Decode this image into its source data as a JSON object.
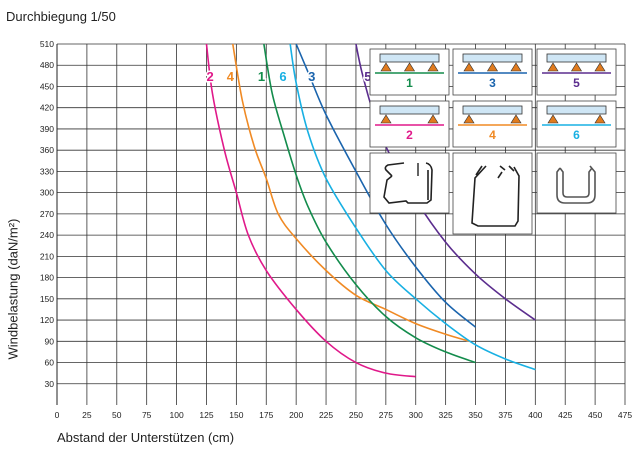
{
  "chart_data": {
    "type": "line",
    "title": "Durchbiegung 1/50",
    "xlabel": "Abstand der Unterstützen  (cm)",
    "ylabel": "Windbelastung  (daN/m²)",
    "xlim": [
      0,
      475
    ],
    "ylim": [
      0,
      510
    ],
    "xticks": [
      0,
      25,
      50,
      75,
      100,
      125,
      150,
      175,
      200,
      225,
      250,
      275,
      300,
      325,
      350,
      375,
      400,
      425,
      450,
      475
    ],
    "yticks": [
      30,
      60,
      90,
      120,
      150,
      180,
      210,
      240,
      270,
      300,
      330,
      360,
      390,
      420,
      450,
      480,
      510
    ],
    "grid": true,
    "series": [
      {
        "name": "2",
        "color": "#e0198a",
        "x": [
          125,
          130,
          140,
          150,
          160,
          175,
          200,
          225,
          250,
          275,
          300
        ],
        "y": [
          510,
          440,
          360,
          300,
          240,
          190,
          135,
          90,
          60,
          45,
          40
        ]
      },
      {
        "name": "4",
        "color": "#f08a24",
        "x": [
          147,
          155,
          165,
          175,
          185,
          200,
          225,
          250,
          275,
          300,
          325,
          345
        ],
        "y": [
          510,
          430,
          365,
          320,
          270,
          235,
          190,
          155,
          135,
          115,
          100,
          90
        ]
      },
      {
        "name": "1",
        "color": "#138c4c",
        "x": [
          173,
          180,
          190,
          200,
          210,
          225,
          250,
          275,
          300,
          325,
          350
        ],
        "y": [
          510,
          440,
          380,
          325,
          280,
          230,
          170,
          125,
          95,
          75,
          60
        ]
      },
      {
        "name": "6",
        "color": "#18b0e3",
        "x": [
          195,
          200,
          210,
          225,
          250,
          275,
          300,
          325,
          350,
          375,
          400
        ],
        "y": [
          510,
          455,
          385,
          320,
          250,
          190,
          150,
          115,
          85,
          65,
          50
        ]
      },
      {
        "name": "3",
        "color": "#1a64ad",
        "x": [
          200,
          210,
          225,
          250,
          275,
          300,
          325,
          350
        ],
        "y": [
          510,
          470,
          410,
          330,
          255,
          195,
          145,
          110
        ]
      },
      {
        "name": "5",
        "color": "#5b2d8e",
        "x": [
          250,
          255,
          265,
          275,
          300,
          325,
          350,
          375,
          400
        ],
        "y": [
          510,
          470,
          410,
          365,
          290,
          230,
          185,
          150,
          120
        ]
      }
    ],
    "curve_labels": [
      {
        "text": "2",
        "color": "#e0198a",
        "x": 128,
        "y": 465
      },
      {
        "text": "4",
        "color": "#f08a24",
        "x": 145,
        "y": 465
      },
      {
        "text": "1",
        "color": "#138c4c",
        "x": 171,
        "y": 465
      },
      {
        "text": "6",
        "color": "#18b0e3",
        "x": 189,
        "y": 465
      },
      {
        "text": "3",
        "color": "#1a64ad",
        "x": 213,
        "y": 465
      },
      {
        "text": "5",
        "color": "#5b2d8e",
        "x": 260,
        "y": 465
      }
    ]
  },
  "legend_panels": [
    {
      "label": "1",
      "color": "#138c4c"
    },
    {
      "label": "3",
      "color": "#1a64ad"
    },
    {
      "label": "5",
      "color": "#5b2d8e"
    },
    {
      "label": "2",
      "color": "#e0198a"
    },
    {
      "label": "4",
      "color": "#f08a24"
    },
    {
      "label": "6",
      "color": "#18b0e3"
    }
  ],
  "profiles": [
    "profile-open-rail",
    "profile-deep-rail",
    "profile-round-u"
  ]
}
